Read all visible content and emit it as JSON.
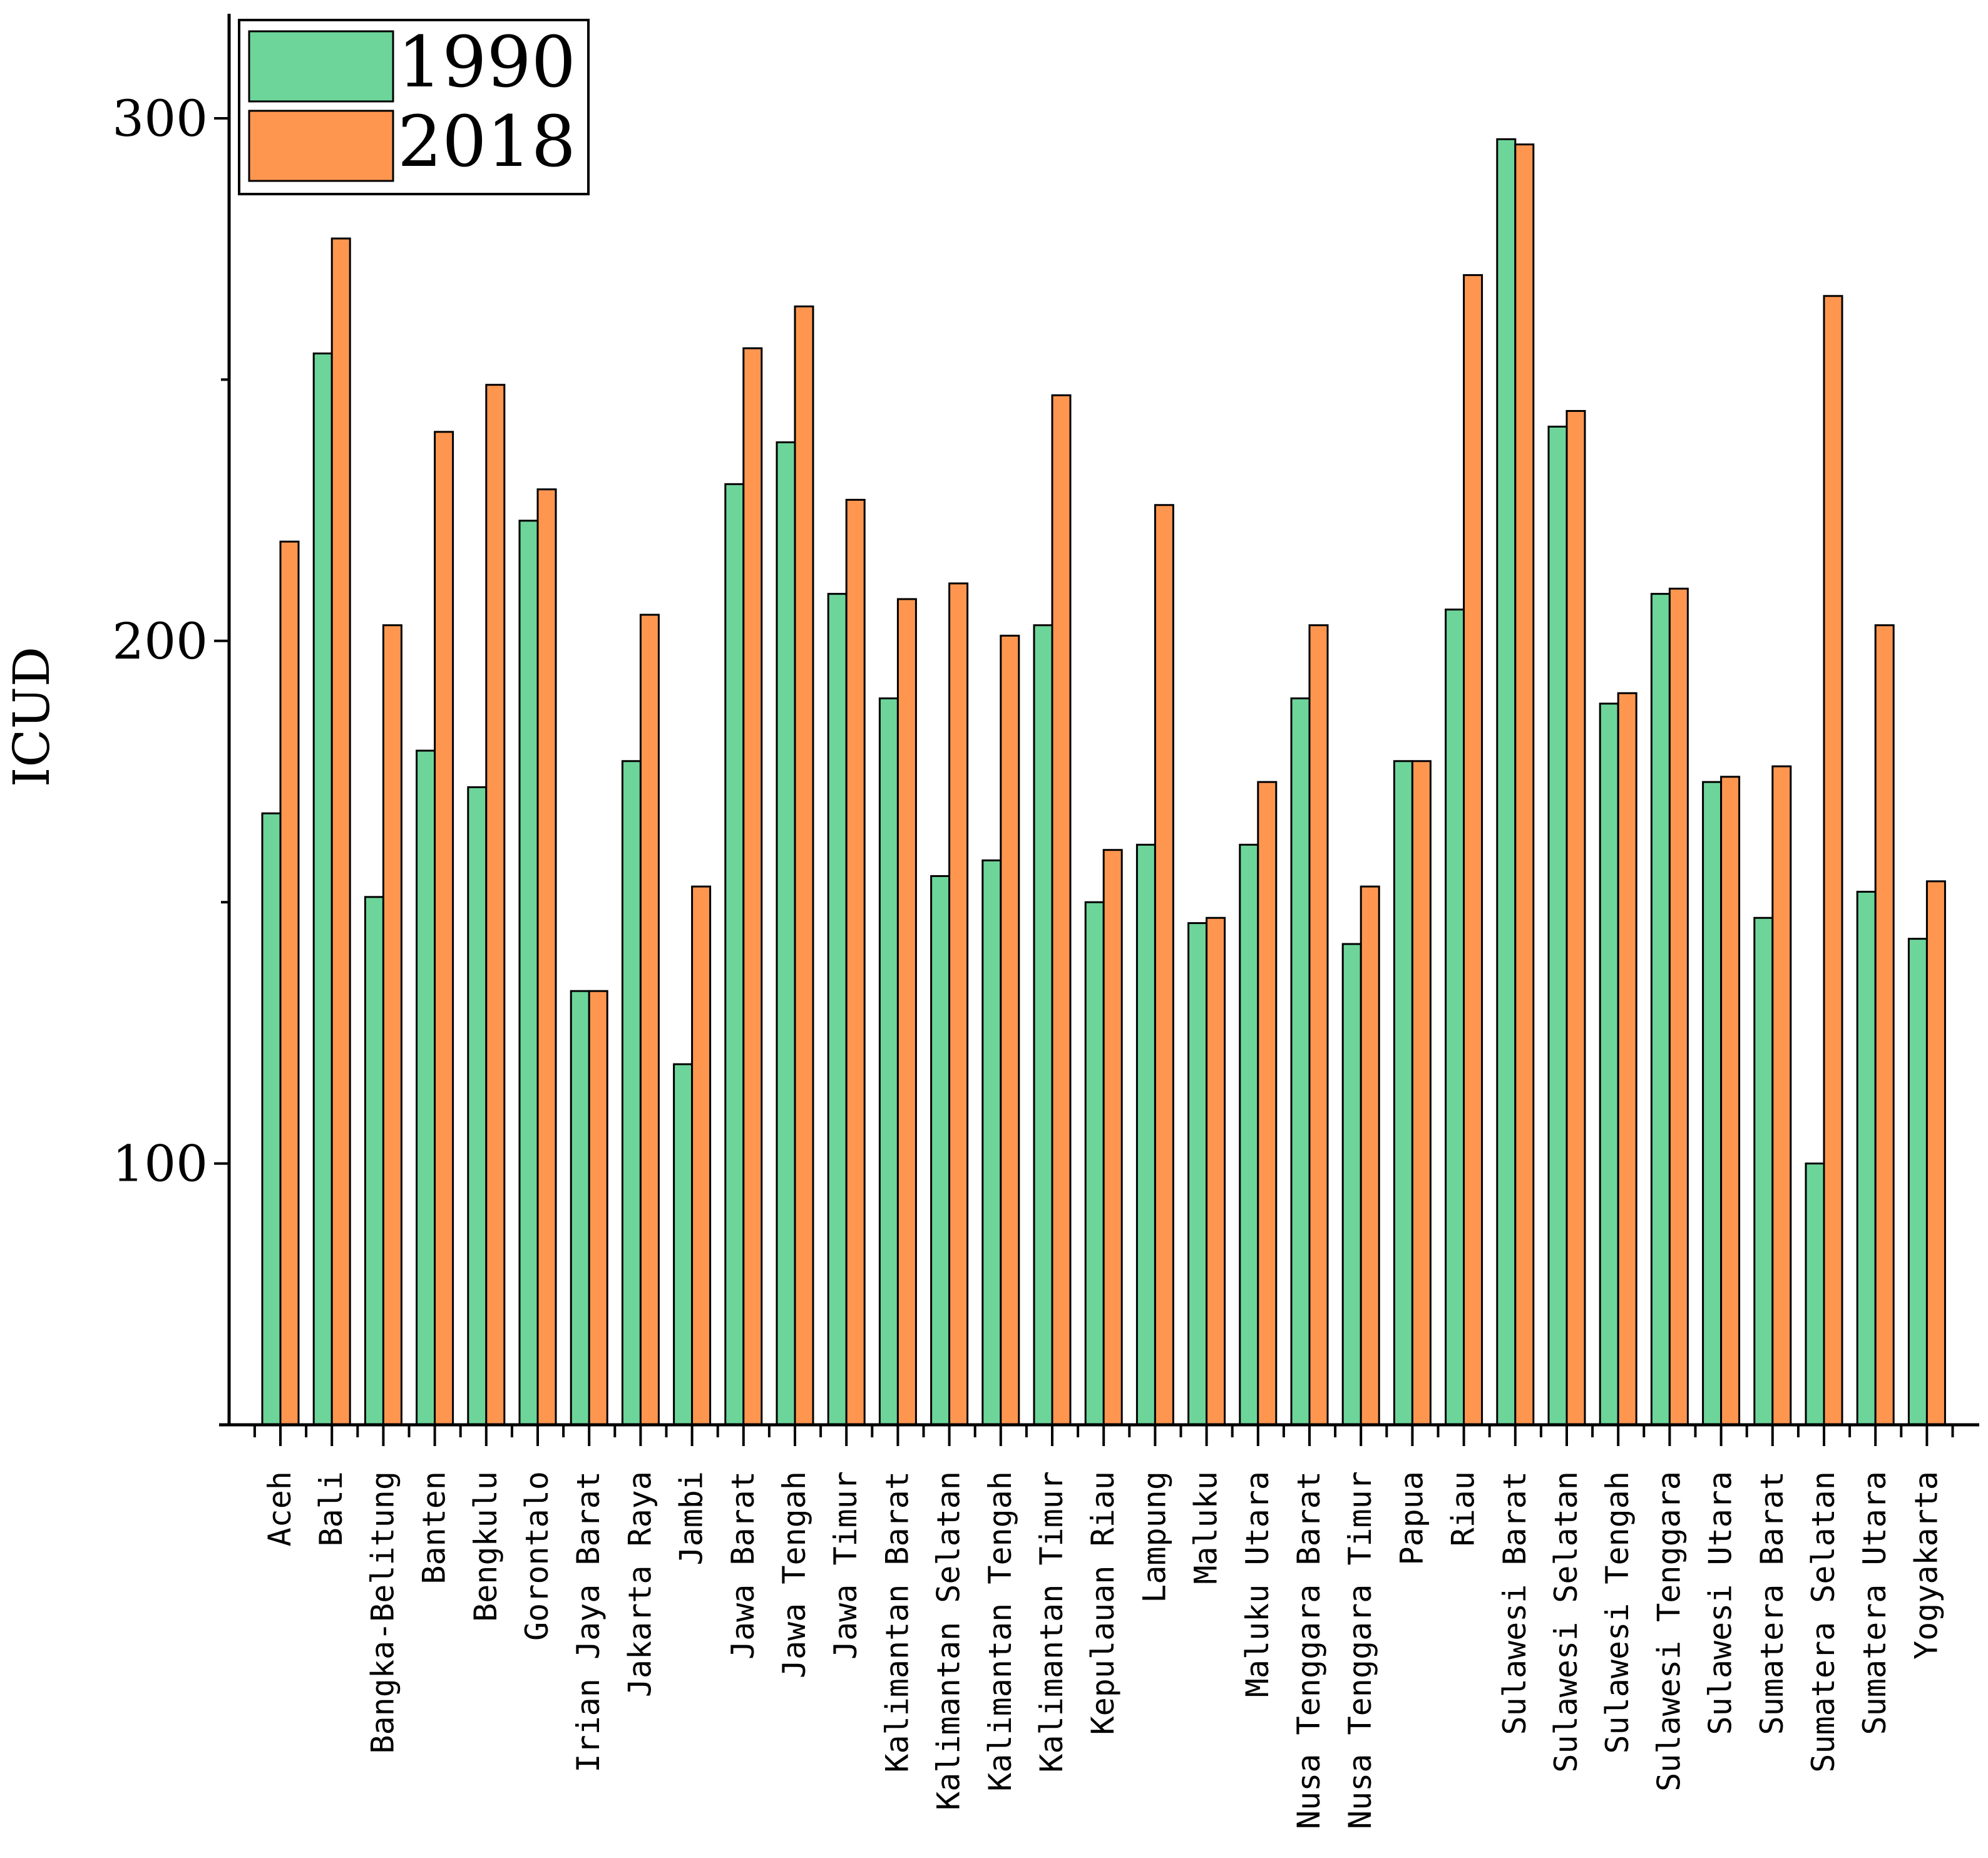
{
  "chart_data": {
    "type": "bar",
    "title": "",
    "xlabel": "",
    "ylabel": "ICUD",
    "ylim": [
      50,
      320
    ],
    "yticks_major": [
      100,
      200,
      300
    ],
    "yticks_minor": [
      150,
      250
    ],
    "grid": false,
    "legend_position": "top-left",
    "categories": [
      "Aceh",
      "Bali",
      "Bangka-Belitung",
      "Banten",
      "Bengkulu",
      "Gorontalo",
      "Irian Jaya Barat",
      "Jakarta Raya",
      "Jambi",
      "Jawa Barat",
      "Jawa Tengah",
      "Jawa Timur",
      "Kalimantan Barat",
      "Kalimantan Selatan",
      "Kalimantan Tengah",
      "Kalimantan Timur",
      "Kepulauan Riau",
      "Lampung",
      "Maluku",
      "Maluku Utara",
      "Nusa Tenggara Barat",
      "Nusa Tenggara Timur",
      "Papua",
      "Riau",
      "Sulawesi Barat",
      "Sulawesi Selatan",
      "Sulawesi Tengah",
      "Sulawesi Tenggara",
      "Sulawesi Utara",
      "Sumatera Barat",
      "Sumatera Selatan",
      "Sumatera Utara",
      "Yogyakarta"
    ],
    "series": [
      {
        "name": "1990",
        "color": "#6dd59a",
        "values": [
          167,
          255,
          151,
          179,
          172,
          223,
          133,
          177,
          119,
          230,
          238,
          209,
          189,
          155,
          158,
          203,
          150,
          161,
          146,
          161,
          189,
          142,
          177,
          206,
          296,
          241,
          188,
          209,
          173,
          147,
          100,
          152,
          143
        ]
      },
      {
        "name": "2018",
        "color": "#fe9650",
        "values": [
          219,
          277,
          203,
          240,
          249,
          229,
          133,
          205,
          153,
          256,
          264,
          227,
          208,
          211,
          201,
          247,
          160,
          226,
          147,
          173,
          203,
          153,
          177,
          270,
          295,
          244,
          190,
          210,
          174,
          176,
          266,
          203,
          154
        ]
      }
    ]
  }
}
